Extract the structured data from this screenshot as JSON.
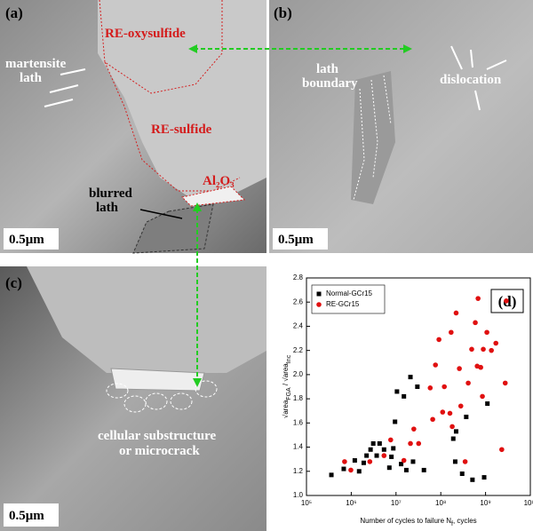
{
  "panels": [
    {
      "label": "(a)",
      "scale_bar": "0.5μm",
      "annotations": [
        "RE-oxysulfide",
        "martensite",
        "lath",
        "RE-sulfide",
        "Al₂O₃",
        "blurred",
        "lath"
      ]
    },
    {
      "label": "(b)",
      "scale_bar": "0.5μm",
      "annotations": [
        "lath",
        "boundary",
        "dislocation"
      ]
    },
    {
      "label": "(c)",
      "scale_bar": "0.5μm",
      "annotations": [
        "cellular substructure",
        "or microcrack"
      ]
    }
  ],
  "chart_data": {
    "type": "scatter",
    "label": "(d)",
    "xlabel": [
      {
        "text": "Number of cycles to failure N"
      },
      {
        "text": "f",
        "sub": true
      },
      {
        "text": ", cycles"
      }
    ],
    "ylabel": [
      {
        "text": "√area"
      },
      {
        "text": "FGA",
        "sub": true
      },
      {
        "text": " / √area"
      },
      {
        "text": "Inc",
        "sub": true
      }
    ],
    "xscale": "log",
    "xlim": [
      100000,
      10000000000
    ],
    "xticks": [
      {
        "value": 100000,
        "label": "10⁵"
      },
      {
        "value": 1000000,
        "label": "10⁶"
      },
      {
        "value": 10000000,
        "label": "10⁷"
      },
      {
        "value": 100000000,
        "label": "10⁸"
      },
      {
        "value": 1000000000,
        "label": "10⁹"
      },
      {
        "value": 10000000000,
        "label": "10¹⁰"
      }
    ],
    "ylim": [
      1.0,
      2.8
    ],
    "yticks": [
      {
        "value": 1.0,
        "label": "1.0"
      },
      1.2,
      1.4,
      1.6,
      1.8,
      {
        "value": 2.0,
        "label": "2.0"
      },
      2.2,
      2.4,
      2.6,
      2.8
    ],
    "legend": "upper-left",
    "series": [
      {
        "name": "Normal-GCr15",
        "color": "#000000",
        "marker": "square",
        "x": [
          360000.0,
          680000.0,
          1200000.0,
          1500000.0,
          1900000.0,
          2200000.0,
          2700000.0,
          3100000.0,
          3700000.0,
          4300000.0,
          5400000.0,
          7100000.0,
          7900000.0,
          8700000.0,
          9500000.0,
          10500000.0,
          13000000.0,
          15000000.0,
          17000000.0,
          21000000.0,
          24000000.0,
          30000000.0,
          42000000.0,
          190000000.0,
          210000000.0,
          300000000.0,
          370000000.0,
          510000000.0,
          220000000.0,
          1100000000.0,
          930000000.0
        ],
        "values": [
          1.17,
          1.22,
          1.29,
          1.2,
          1.27,
          1.33,
          1.38,
          1.43,
          1.33,
          1.43,
          1.38,
          1.23,
          1.32,
          1.39,
          1.61,
          1.86,
          1.26,
          1.82,
          1.21,
          1.98,
          1.28,
          1.9,
          1.21,
          1.47,
          1.28,
          1.18,
          1.65,
          1.13,
          1.53,
          1.76,
          1.15
        ]
      },
      {
        "name": "RE-GCr15",
        "color": "#e01010",
        "marker": "circle",
        "x": [
          710000.0,
          980000.0,
          2600000.0,
          5400000.0,
          7600000.0,
          15000000.0,
          21000000.0,
          25000000.0,
          32000000.0,
          58000000.0,
          66000000.0,
          76000000.0,
          91000000.0,
          110000000.0,
          120000000.0,
          160000000.0,
          170000000.0,
          180000000.0,
          220000000.0,
          260000000.0,
          410000000.0,
          490000000.0,
          590000000.0,
          650000000.0,
          780000000.0,
          890000000.0,
          1070000000.0,
          1350000000.0,
          1700000000.0,
          850000000.0,
          680000000.0,
          2900000000.0,
          2300000000.0,
          2750000000.0,
          350000000.0,
          280000000.0
        ],
        "values": [
          1.28,
          1.21,
          1.28,
          1.33,
          1.46,
          1.29,
          1.43,
          1.55,
          1.43,
          1.89,
          1.63,
          2.08,
          2.29,
          1.69,
          1.9,
          1.68,
          2.35,
          1.57,
          2.51,
          2.05,
          1.93,
          2.21,
          2.43,
          2.07,
          2.06,
          2.21,
          2.35,
          2.2,
          2.26,
          1.82,
          2.63,
          2.61,
          1.38,
          1.93,
          1.28,
          1.74
        ]
      }
    ]
  }
}
